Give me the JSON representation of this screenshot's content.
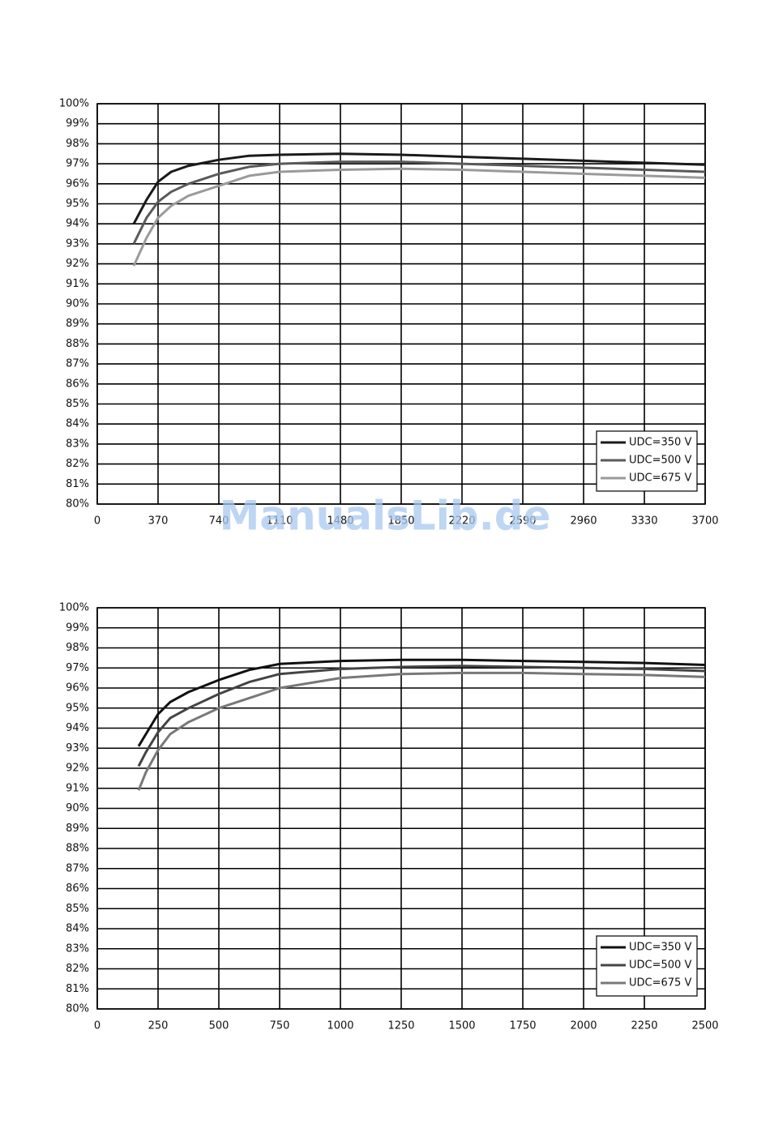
{
  "chart_data": [
    {
      "type": "line",
      "x": [
        222,
        300,
        370,
        450,
        555,
        740,
        925,
        1110,
        1480,
        1850,
        2220,
        2590,
        2960,
        3330,
        3700
      ],
      "series": [
        {
          "name": "UDC=350 V",
          "color": "#1a1a1a",
          "values": [
            94.0,
            95.2,
            96.1,
            96.6,
            96.9,
            97.2,
            97.4,
            97.45,
            97.5,
            97.45,
            97.35,
            97.25,
            97.15,
            97.05,
            96.95
          ]
        },
        {
          "name": "UDC=500 V",
          "color": "#5a5a5a",
          "values": [
            93.0,
            94.3,
            95.1,
            95.6,
            96.0,
            96.5,
            96.85,
            97.0,
            97.1,
            97.1,
            97.0,
            96.9,
            96.8,
            96.7,
            96.6
          ]
        },
        {
          "name": "UDC=675 V",
          "color": "#9a9a9a",
          "values": [
            91.9,
            93.3,
            94.3,
            94.9,
            95.4,
            95.9,
            96.4,
            96.6,
            96.7,
            96.75,
            96.7,
            96.6,
            96.5,
            96.4,
            96.3
          ]
        }
      ],
      "xlim": [
        0,
        3700
      ],
      "xticks": [
        0,
        370,
        740,
        1110,
        1480,
        1850,
        2220,
        2590,
        2960,
        3330,
        3700
      ],
      "ylim": [
        80,
        100
      ],
      "yticks": [
        {
          "value": 80,
          "label": "80%"
        },
        {
          "value": 81,
          "label": "81%"
        },
        {
          "value": 82,
          "label": "82%"
        },
        {
          "value": 83,
          "label": "83%"
        },
        {
          "value": 84,
          "label": "84%"
        },
        {
          "value": 85,
          "label": "85%"
        },
        {
          "value": 86,
          "label": "86%"
        },
        {
          "value": 87,
          "label": "87%"
        },
        {
          "value": 88,
          "label": "88%"
        },
        {
          "value": 89,
          "label": "89%"
        },
        {
          "value": 90,
          "label": "90%"
        },
        {
          "value": 91,
          "label": "91%"
        },
        {
          "value": 92,
          "label": "92%"
        },
        {
          "value": 93,
          "label": "93%"
        },
        {
          "value": 94,
          "label": "94%"
        },
        {
          "value": 95,
          "label": "95%"
        },
        {
          "value": 96,
          "label": "96%"
        },
        {
          "value": 97,
          "label": "97%"
        },
        {
          "value": 98,
          "label": "98%"
        },
        {
          "value": 99,
          "label": "99%"
        },
        {
          "value": 100,
          "label": "100%"
        }
      ],
      "grid": true,
      "legend": "lower right"
    },
    {
      "type": "line",
      "x": [
        170,
        200,
        250,
        300,
        375,
        500,
        625,
        750,
        1000,
        1250,
        1500,
        1750,
        2000,
        2250,
        2500
      ],
      "series": [
        {
          "name": "UDC=350 V",
          "color": "#111111",
          "values": [
            93.1,
            93.7,
            94.7,
            95.3,
            95.8,
            96.4,
            96.9,
            97.2,
            97.35,
            97.4,
            97.4,
            97.35,
            97.3,
            97.25,
            97.15
          ]
        },
        {
          "name": "UDC=500 V",
          "color": "#444444",
          "values": [
            92.1,
            92.8,
            93.8,
            94.5,
            95.0,
            95.7,
            96.3,
            96.7,
            96.95,
            97.05,
            97.1,
            97.05,
            97.0,
            96.95,
            96.85
          ]
        },
        {
          "name": "UDC=675 V",
          "color": "#787878",
          "values": [
            90.9,
            91.8,
            92.9,
            93.7,
            94.3,
            95.0,
            95.5,
            96.0,
            96.5,
            96.7,
            96.75,
            96.75,
            96.7,
            96.65,
            96.55
          ]
        }
      ],
      "xlim": [
        0,
        2500
      ],
      "xticks": [
        0,
        250,
        500,
        750,
        1000,
        1250,
        1500,
        1750,
        2000,
        2250,
        2500
      ],
      "ylim": [
        80,
        100
      ],
      "yticks": [
        {
          "value": 80,
          "label": "80%"
        },
        {
          "value": 81,
          "label": "81%"
        },
        {
          "value": 82,
          "label": "82%"
        },
        {
          "value": 83,
          "label": "83%"
        },
        {
          "value": 84,
          "label": "84%"
        },
        {
          "value": 85,
          "label": "85%"
        },
        {
          "value": 86,
          "label": "86%"
        },
        {
          "value": 87,
          "label": "87%"
        },
        {
          "value": 88,
          "label": "88%"
        },
        {
          "value": 89,
          "label": "89%"
        },
        {
          "value": 90,
          "label": "90%"
        },
        {
          "value": 91,
          "label": "91%"
        },
        {
          "value": 92,
          "label": "92%"
        },
        {
          "value": 93,
          "label": "93%"
        },
        {
          "value": 94,
          "label": "94%"
        },
        {
          "value": 95,
          "label": "95%"
        },
        {
          "value": 96,
          "label": "96%"
        },
        {
          "value": 97,
          "label": "97%"
        },
        {
          "value": 98,
          "label": "98%"
        },
        {
          "value": 99,
          "label": "99%"
        },
        {
          "value": 100,
          "label": "100%"
        }
      ],
      "grid": true,
      "legend": "lower right"
    }
  ],
  "watermark": "ManualsLib.de"
}
